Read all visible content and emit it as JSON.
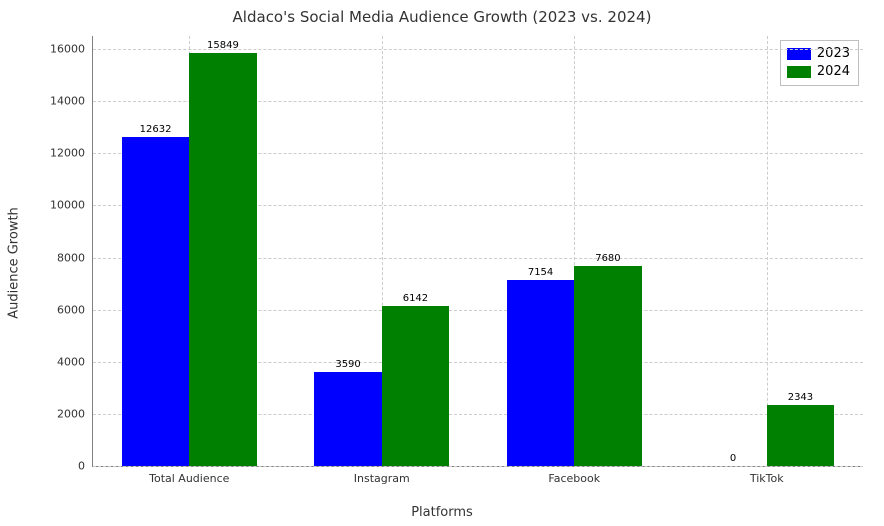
{
  "chart": {
    "type": "bar",
    "title": "Aldaco's Social Media Audience Growth (2023 vs. 2024)",
    "title_fontsize": 15,
    "xlabel": "Platforms",
    "ylabel": "Audience Growth",
    "label_fontsize": 13,
    "tick_fontsize": 11,
    "bar_label_fontsize": 10,
    "background_color": "#ffffff",
    "grid_color": "#cccccc",
    "axis_color": "#808080",
    "text_color": "#333333",
    "categories": [
      "Total Audience",
      "Instagram",
      "Facebook",
      "TikTok"
    ],
    "series": [
      {
        "name": "2023",
        "color": "#0000ff",
        "values": [
          12632,
          3590,
          7154,
          0
        ]
      },
      {
        "name": "2024",
        "color": "#008000",
        "values": [
          15849,
          6142,
          7680,
          2343
        ]
      }
    ],
    "ylim": [
      0,
      16500
    ],
    "yticks": [
      0,
      2000,
      4000,
      6000,
      8000,
      10000,
      12000,
      14000,
      16000
    ],
    "bar_width": 0.35,
    "group_spacing": 1.0,
    "legend_position": "top-right"
  }
}
